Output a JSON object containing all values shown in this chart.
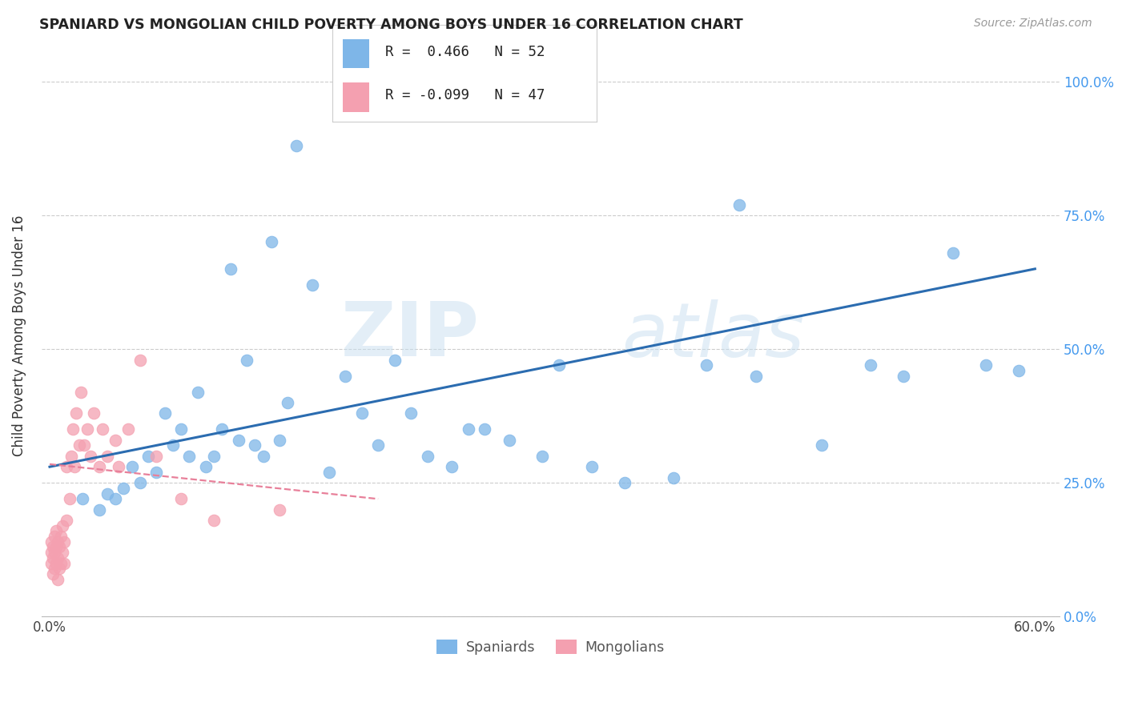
{
  "title": "SPANIARD VS MONGOLIAN CHILD POVERTY AMONG BOYS UNDER 16 CORRELATION CHART",
  "source": "Source: ZipAtlas.com",
  "ylabel": "Child Poverty Among Boys Under 16",
  "x_ticks": [
    0.0,
    0.1,
    0.2,
    0.3,
    0.4,
    0.5,
    0.6
  ],
  "x_tick_labels": [
    "0.0%",
    "",
    "",
    "",
    "",
    "",
    "60.0%"
  ],
  "y_ticks": [
    0.0,
    0.25,
    0.5,
    0.75,
    1.0
  ],
  "y_tick_labels": [
    "0.0%",
    "25.0%",
    "50.0%",
    "75.0%",
    "100.0%"
  ],
  "xlim": [
    -0.005,
    0.615
  ],
  "ylim": [
    0.0,
    1.05
  ],
  "spaniard_color": "#7EB6E8",
  "mongolian_color": "#F4A0B0",
  "spaniard_line_color": "#2B6CB0",
  "mongolian_line_color": "#E8809A",
  "spaniard_R": 0.466,
  "spaniard_N": 52,
  "mongolian_R": -0.099,
  "mongolian_N": 47,
  "watermark_zip": "ZIP",
  "watermark_atlas": "atlas",
  "legend_spaniard": "Spaniards",
  "legend_mongolian": "Mongolians",
  "sp_trend_x0": 0.0,
  "sp_trend_y0": 0.28,
  "sp_trend_x1": 0.6,
  "sp_trend_y1": 0.65,
  "mn_trend_x0": 0.0,
  "mn_trend_y0": 0.285,
  "mn_trend_x1": 0.2,
  "mn_trend_y1": 0.22,
  "spaniard_x": [
    0.02,
    0.03,
    0.035,
    0.04,
    0.045,
    0.05,
    0.055,
    0.06,
    0.065,
    0.07,
    0.075,
    0.08,
    0.085,
    0.09,
    0.095,
    0.1,
    0.105,
    0.11,
    0.115,
    0.12,
    0.125,
    0.13,
    0.135,
    0.14,
    0.145,
    0.15,
    0.16,
    0.17,
    0.18,
    0.19,
    0.2,
    0.21,
    0.22,
    0.23,
    0.245,
    0.255,
    0.265,
    0.28,
    0.3,
    0.31,
    0.33,
    0.35,
    0.38,
    0.4,
    0.42,
    0.43,
    0.47,
    0.5,
    0.52,
    0.55,
    0.57,
    0.59
  ],
  "spaniard_y": [
    0.22,
    0.2,
    0.23,
    0.22,
    0.24,
    0.28,
    0.25,
    0.3,
    0.27,
    0.38,
    0.32,
    0.35,
    0.3,
    0.42,
    0.28,
    0.3,
    0.35,
    0.65,
    0.33,
    0.48,
    0.32,
    0.3,
    0.7,
    0.33,
    0.4,
    0.88,
    0.62,
    0.27,
    0.45,
    0.38,
    0.32,
    0.48,
    0.38,
    0.3,
    0.28,
    0.35,
    0.35,
    0.33,
    0.3,
    0.47,
    0.28,
    0.25,
    0.26,
    0.47,
    0.77,
    0.45,
    0.32,
    0.47,
    0.45,
    0.68,
    0.47,
    0.46
  ],
  "mongolian_x": [
    0.001,
    0.001,
    0.001,
    0.002,
    0.002,
    0.002,
    0.003,
    0.003,
    0.003,
    0.004,
    0.004,
    0.004,
    0.005,
    0.005,
    0.005,
    0.006,
    0.006,
    0.007,
    0.007,
    0.008,
    0.008,
    0.009,
    0.009,
    0.01,
    0.01,
    0.012,
    0.013,
    0.014,
    0.015,
    0.016,
    0.018,
    0.019,
    0.021,
    0.023,
    0.025,
    0.027,
    0.03,
    0.032,
    0.035,
    0.04,
    0.042,
    0.048,
    0.055,
    0.065,
    0.08,
    0.1,
    0.14
  ],
  "mongolian_y": [
    0.1,
    0.12,
    0.14,
    0.08,
    0.11,
    0.13,
    0.09,
    0.12,
    0.15,
    0.1,
    0.13,
    0.16,
    0.07,
    0.11,
    0.14,
    0.09,
    0.13,
    0.1,
    0.15,
    0.12,
    0.17,
    0.1,
    0.14,
    0.18,
    0.28,
    0.22,
    0.3,
    0.35,
    0.28,
    0.38,
    0.32,
    0.42,
    0.32,
    0.35,
    0.3,
    0.38,
    0.28,
    0.35,
    0.3,
    0.33,
    0.28,
    0.35,
    0.48,
    0.3,
    0.22,
    0.18,
    0.2
  ]
}
